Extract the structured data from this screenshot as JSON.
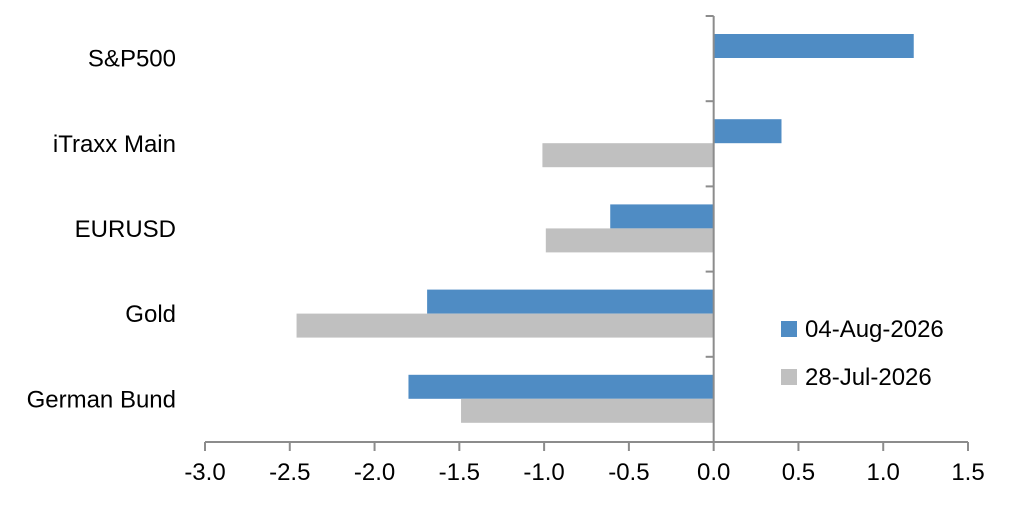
{
  "chart_data": {
    "type": "bar",
    "orientation": "horizontal",
    "title": "",
    "xlabel": "",
    "ylabel": "",
    "categories": [
      "S&P500",
      "iTraxx Main",
      "EURUSD",
      "Gold",
      "German Bund"
    ],
    "series": [
      {
        "name": "04-Aug-2026",
        "color": "#4f8cc4",
        "values": [
          1.18,
          0.4,
          -0.61,
          -1.69,
          -1.8
        ]
      },
      {
        "name": "28-Jul-2026",
        "color": "#c0c0c0",
        "values": [
          0.0,
          -1.01,
          -0.99,
          -2.46,
          -1.49
        ]
      }
    ],
    "xlim": [
      -3.0,
      1.5
    ],
    "xticks": [
      "-3.0",
      "-2.5",
      "-2.0",
      "-1.5",
      "-1.0",
      "-0.5",
      "0.0",
      "0.5",
      "1.0",
      "1.5"
    ],
    "grid": false,
    "legend_position": "bottom-right"
  }
}
